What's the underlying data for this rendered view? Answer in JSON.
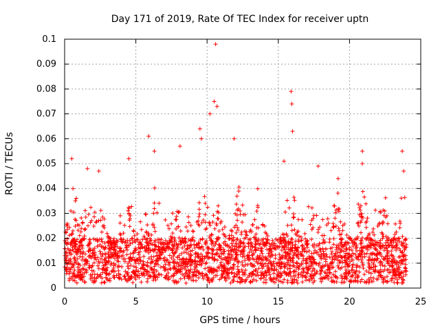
{
  "chart_data": {
    "type": "scatter",
    "title": "Day 171 of 2019, Rate Of TEC Index for receiver uptn",
    "xlabel": "GPS time / hours",
    "ylabel": "ROTI / TECUs",
    "xlim": [
      0,
      25
    ],
    "ylim": [
      0,
      0.1
    ],
    "xticks": [
      0,
      5,
      10,
      15,
      20,
      25
    ],
    "xtick_labels": [
      "0",
      "5",
      "10",
      "15",
      "20",
      "25"
    ],
    "yticks": [
      0,
      0.01,
      0.02,
      0.03,
      0.04,
      0.05,
      0.06,
      0.07,
      0.08,
      0.09,
      0.1
    ],
    "ytick_labels": [
      "0",
      "0.01",
      "0.02",
      "0.03",
      "0.04",
      "0.05",
      "0.06",
      "0.07",
      "0.08",
      "0.09",
      "0.1"
    ],
    "grid": true,
    "marker": "+",
    "color": "#ff0000",
    "series": [
      {
        "name": "ROTI",
        "x_range": [
          0,
          24
        ],
        "baseline_range": [
          0.002,
          0.02
        ],
        "typical_max": 0.035,
        "notable_points": [
          {
            "x": 0.5,
            "y": 0.052
          },
          {
            "x": 1.6,
            "y": 0.048
          },
          {
            "x": 2.4,
            "y": 0.047
          },
          {
            "x": 4.5,
            "y": 0.052
          },
          {
            "x": 5.9,
            "y": 0.061
          },
          {
            "x": 6.3,
            "y": 0.055
          },
          {
            "x": 8.1,
            "y": 0.057
          },
          {
            "x": 9.5,
            "y": 0.064
          },
          {
            "x": 9.6,
            "y": 0.06
          },
          {
            "x": 10.2,
            "y": 0.07
          },
          {
            "x": 10.5,
            "y": 0.075
          },
          {
            "x": 10.6,
            "y": 0.098
          },
          {
            "x": 10.7,
            "y": 0.073
          },
          {
            "x": 11.9,
            "y": 0.06
          },
          {
            "x": 15.4,
            "y": 0.051
          },
          {
            "x": 15.9,
            "y": 0.079
          },
          {
            "x": 15.95,
            "y": 0.074
          },
          {
            "x": 16.0,
            "y": 0.063
          },
          {
            "x": 17.8,
            "y": 0.049
          },
          {
            "x": 19.2,
            "y": 0.044
          },
          {
            "x": 20.9,
            "y": 0.055
          },
          {
            "x": 20.9,
            "y": 0.05
          },
          {
            "x": 23.7,
            "y": 0.055
          },
          {
            "x": 23.8,
            "y": 0.047
          }
        ]
      }
    ]
  }
}
